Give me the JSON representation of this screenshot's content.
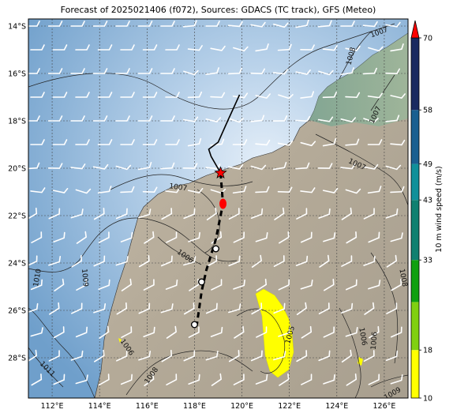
{
  "title": "Forecast of 2025021406 (f072), Sources: GDACS (TC track), GFS (Meteo)",
  "map": {
    "lon_range": [
      111.0,
      127.0
    ],
    "lat_range": [
      -29.7,
      -13.7
    ],
    "lon_ticks": [
      "112°E",
      "114°E",
      "116°E",
      "118°E",
      "120°E",
      "122°E",
      "124°E",
      "126°E"
    ],
    "lat_ticks": [
      "14°S",
      "16°S",
      "18°S",
      "20°S",
      "22°S",
      "24°S",
      "26°S",
      "28°S"
    ],
    "grid": true,
    "ocean_color": "#7aa7d1",
    "land_color": "#b8ad9b",
    "track_color": "#000000",
    "current_position_marker": {
      "lon": 119.1,
      "lat": -20.2,
      "shape": "star",
      "color": "#ff0000"
    },
    "isobar_labels": [
      "1007",
      "1008",
      "1007",
      "1007",
      "1006",
      "1009",
      "1010",
      "1005",
      "1006",
      "1006",
      "1006",
      "1008",
      "1011",
      "1009",
      "1008",
      "1007"
    ]
  },
  "colorbar": {
    "label": "10 m wind speed (m/s)",
    "ticks": [
      "10",
      "18",
      "33",
      "43",
      "49",
      "58",
      "70"
    ],
    "colors": [
      "#ffff00",
      "#80d010",
      "#10a010",
      "#108070",
      "#10909a",
      "#1a5f90",
      "#1a2a60"
    ],
    "overflow_color": "#ff0000"
  },
  "track": {
    "past": [
      {
        "lon": 119.9,
        "lat": -16.9
      },
      {
        "lon": 119.4,
        "lat": -18.0
      },
      {
        "lon": 119.0,
        "lat": -18.9
      },
      {
        "lon": 118.6,
        "lat": -19.2
      },
      {
        "lon": 118.7,
        "lat": -19.5
      },
      {
        "lon": 119.1,
        "lat": -20.2
      }
    ],
    "forecast": [
      {
        "lon": 119.1,
        "lat": -20.2
      },
      {
        "lon": 119.2,
        "lat": -21.5
      },
      {
        "lon": 118.9,
        "lat": -23.0
      },
      {
        "lon": 118.5,
        "lat": -24.3
      },
      {
        "lon": 118.3,
        "lat": -25.2
      },
      {
        "lon": 118.1,
        "lat": -26.6
      }
    ],
    "forecast_points": [
      {
        "lon": 119.2,
        "lat": -21.5,
        "style": "red"
      },
      {
        "lon": 118.9,
        "lat": -23.4,
        "style": "open"
      },
      {
        "lon": 118.3,
        "lat": -24.8,
        "style": "open"
      },
      {
        "lon": 118.0,
        "lat": -26.6,
        "style": "open"
      }
    ]
  }
}
